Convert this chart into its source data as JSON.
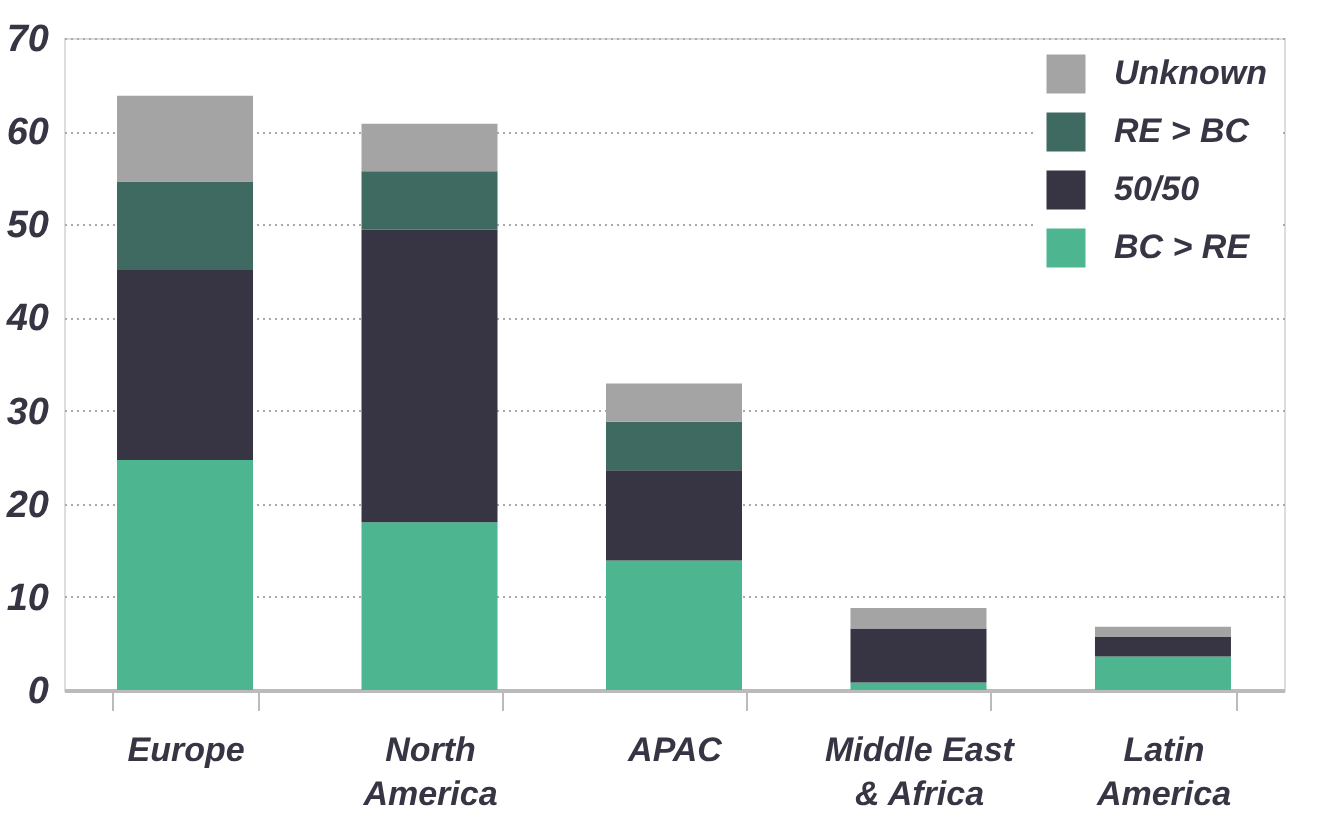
{
  "chart_data": {
    "type": "bar",
    "stacked": true,
    "categories": [
      "Europe",
      "North America",
      "APAC",
      "Middle East & Africa",
      "Latin America"
    ],
    "series": [
      {
        "name": "BC > RE",
        "color": "#4db58f",
        "values": [
          24.7,
          18.0,
          13.9,
          0.8,
          3.6
        ]
      },
      {
        "name": "50/50",
        "color": "#373543",
        "values": [
          20.4,
          31.4,
          9.7,
          5.8,
          2.1
        ]
      },
      {
        "name": "RE > BC",
        "color": "#3e6a62",
        "values": [
          9.5,
          6.3,
          5.2,
          0,
          0
        ]
      },
      {
        "name": "Unknown",
        "color": "#a4a4a4",
        "values": [
          9.2,
          5.1,
          4.1,
          2.2,
          1.1
        ]
      }
    ],
    "ylim": [
      0,
      70
    ],
    "yticks": [
      0,
      10,
      20,
      30,
      40,
      50,
      60,
      70
    ],
    "grid": "y",
    "legend": "top right"
  }
}
